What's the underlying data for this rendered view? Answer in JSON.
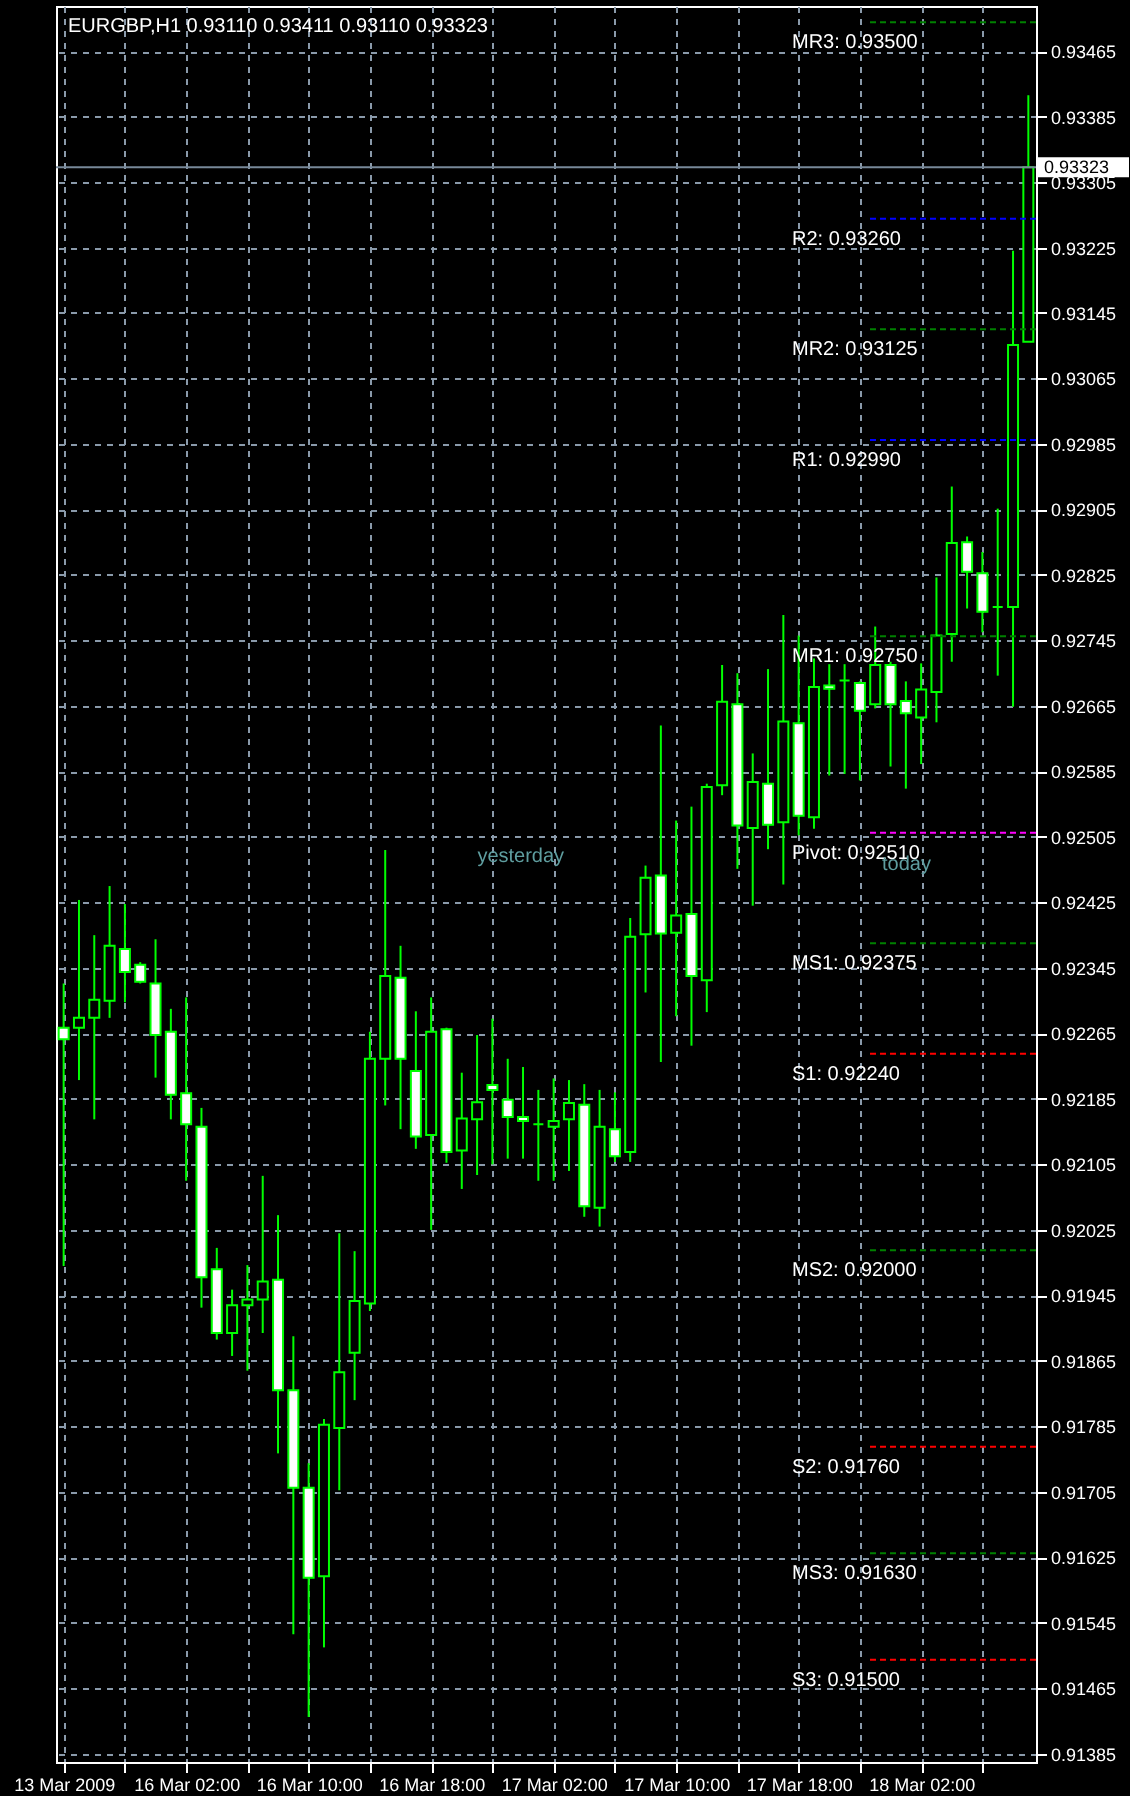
{
  "chart_data": {
    "type": "candlestick",
    "title": "EURGBP,H1  0.93110 0.93411 0.93110 0.93323",
    "categories": [
      "13 Mar 2009",
      null,
      null,
      null,
      null,
      null,
      null,
      null,
      "16 Mar 02:00",
      null,
      null,
      null,
      null,
      null,
      null,
      null,
      "16 Mar 10:00",
      null,
      null,
      null,
      null,
      null,
      null,
      null,
      "16 Mar 18:00",
      null,
      null,
      null,
      null,
      null,
      null,
      null,
      "17 Mar 02:00",
      null,
      null,
      null,
      null,
      null,
      null,
      null,
      "17 Mar 10:00",
      null,
      null,
      null,
      null,
      null,
      null,
      null,
      "17 Mar 18:00",
      null,
      null,
      null,
      null,
      null,
      null,
      null,
      "18 Mar 02:00",
      null,
      null,
      null,
      null,
      null,
      null,
      null
    ],
    "ohlc": [
      [
        0.92272,
        0.92326,
        0.91981,
        0.92258
      ],
      [
        0.92272,
        0.92428,
        0.92208,
        0.92284
      ],
      [
        0.92284,
        0.92385,
        0.9216,
        0.92306
      ],
      [
        0.92305,
        0.92445,
        0.92284,
        0.92372
      ],
      [
        0.92368,
        0.92423,
        0.92303,
        0.9234
      ],
      [
        0.92349,
        0.92352,
        0.92326,
        0.92328
      ],
      [
        0.92326,
        0.9238,
        0.92211,
        0.92263
      ],
      [
        0.92267,
        0.92295,
        0.9216,
        0.9219
      ],
      [
        0.92192,
        0.92309,
        0.92085,
        0.92154
      ],
      [
        0.92151,
        0.92174,
        0.9193,
        0.91967
      ],
      [
        0.91977,
        0.92003,
        0.91891,
        0.91899
      ],
      [
        0.91899,
        0.91952,
        0.91871,
        0.91933
      ],
      [
        0.91933,
        0.91982,
        0.91853,
        0.9194
      ],
      [
        0.9194,
        0.92091,
        0.91899,
        0.91962
      ],
      [
        0.91964,
        0.92043,
        0.91752,
        0.91829
      ],
      [
        0.91829,
        0.91895,
        0.91531,
        0.9171
      ],
      [
        0.9171,
        0.9174,
        0.9143,
        0.916
      ],
      [
        0.91602,
        0.91794,
        0.91515,
        0.91787
      ],
      [
        0.91783,
        0.92021,
        0.91707,
        0.91851
      ],
      [
        0.91875,
        0.91999,
        0.91817,
        0.91938
      ],
      [
        0.91935,
        0.92267,
        0.91926,
        0.92234
      ],
      [
        0.92234,
        0.92489,
        0.92177,
        0.92335
      ],
      [
        0.92333,
        0.92372,
        0.92148,
        0.92234
      ],
      [
        0.92219,
        0.92292,
        0.92124,
        0.92139
      ],
      [
        0.92141,
        0.92309,
        0.92025,
        0.92267
      ],
      [
        0.9227,
        0.92272,
        0.92107,
        0.9212
      ],
      [
        0.92122,
        0.92217,
        0.92075,
        0.92161
      ],
      [
        0.9216,
        0.92263,
        0.92092,
        0.92181
      ],
      [
        0.92202,
        0.92283,
        0.92105,
        0.92196
      ],
      [
        0.92184,
        0.92234,
        0.92112,
        0.92163
      ],
      [
        0.92163,
        0.92224,
        0.92112,
        0.92158
      ],
      [
        0.92154,
        0.92196,
        0.92085,
        0.92154
      ],
      [
        0.92151,
        0.9221,
        0.92085,
        0.92158
      ],
      [
        0.9216,
        0.92208,
        0.92097,
        0.9218
      ],
      [
        0.92178,
        0.92203,
        0.92041,
        0.92054
      ],
      [
        0.92052,
        0.92196,
        0.92029,
        0.92151
      ],
      [
        0.92148,
        0.92193,
        0.92108,
        0.92115
      ],
      [
        0.9212,
        0.92406,
        0.92108,
        0.92383
      ],
      [
        0.92386,
        0.9247,
        0.92315,
        0.92455
      ],
      [
        0.92458,
        0.92641,
        0.9223,
        0.92387
      ],
      [
        0.92388,
        0.92525,
        0.92286,
        0.92409
      ],
      [
        0.92411,
        0.92542,
        0.9225,
        0.92335
      ],
      [
        0.9233,
        0.9257,
        0.92291,
        0.92566
      ],
      [
        0.92568,
        0.92715,
        0.92556,
        0.9267
      ],
      [
        0.92667,
        0.92705,
        0.92466,
        0.92519
      ],
      [
        0.92516,
        0.92607,
        0.92421,
        0.92572
      ],
      [
        0.9257,
        0.9271,
        0.9249,
        0.9252
      ],
      [
        0.92523,
        0.92776,
        0.92447,
        0.92646
      ],
      [
        0.92644,
        0.92751,
        0.92507,
        0.92531
      ],
      [
        0.92529,
        0.92723,
        0.92515,
        0.92688
      ],
      [
        0.9269,
        0.92716,
        0.9258,
        0.92686
      ],
      [
        0.92696,
        0.92716,
        0.92582,
        0.92696
      ],
      [
        0.92693,
        0.92695,
        0.92574,
        0.92659
      ],
      [
        0.92667,
        0.92762,
        0.92662,
        0.92715
      ],
      [
        0.92715,
        0.92719,
        0.92591,
        0.92667
      ],
      [
        0.92671,
        0.92695,
        0.92564,
        0.92656
      ],
      [
        0.92651,
        0.92717,
        0.92594,
        0.92685
      ],
      [
        0.92682,
        0.92822,
        0.92645,
        0.92751
      ],
      [
        0.92753,
        0.92933,
        0.92719,
        0.92864
      ],
      [
        0.92865,
        0.92872,
        0.92784,
        0.92829
      ],
      [
        0.92827,
        0.92853,
        0.92755,
        0.9278
      ],
      [
        0.92786,
        0.92906,
        0.92702,
        0.92786
      ],
      [
        0.92786,
        0.93221,
        0.92664,
        0.93106
      ],
      [
        0.9311,
        0.93411,
        0.9311,
        0.93323
      ]
    ],
    "color": "#00ff00",
    "colors": [
      "#ffffff",
      "#000000",
      "#000000",
      "#000000",
      "#ffffff",
      "#ffffff",
      "#ffffff",
      "#ffffff",
      "#ffffff",
      "#ffffff",
      "#ffffff",
      "#000000",
      "#000000",
      "#000000",
      "#ffffff",
      "#ffffff",
      "#ffffff",
      "#000000",
      "#000000",
      "#000000",
      "#000000",
      "#000000",
      "#ffffff",
      "#ffffff",
      "#000000",
      "#ffffff",
      "#000000",
      "#000000",
      "#ffffff",
      "#ffffff",
      "#ffffff",
      "#00ff00",
      "#000000",
      "#000000",
      "#ffffff",
      "#000000",
      "#ffffff",
      "#000000",
      "#000000",
      "#ffffff",
      "#000000",
      "#ffffff",
      "#000000",
      "#000000",
      "#ffffff",
      "#000000",
      "#ffffff",
      "#000000",
      "#ffffff",
      "#000000",
      "#ffffff",
      "#00ff00",
      "#ffffff",
      "#000000",
      "#ffffff",
      "#ffffff",
      "#000000",
      "#000000",
      "#000000",
      "#ffffff",
      "#ffffff",
      "#00ff00",
      "#000000",
      "#000000"
    ],
    "ylim": [
      0.91375,
      0.9352
    ],
    "yticks": [
      0.91385,
      0.91465,
      0.91545,
      0.91625,
      0.91705,
      0.91785,
      0.91865,
      0.91945,
      0.92025,
      0.92105,
      0.92185,
      0.92265,
      0.92345,
      0.92425,
      0.92505,
      0.92585,
      0.92665,
      0.92745,
      0.92825,
      0.92905,
      0.92985,
      0.93065,
      0.93145,
      0.93225,
      0.93305,
      0.93385,
      0.93465
    ],
    "grid": true,
    "ref_lines": [
      {
        "axis": "y",
        "value": 0.935,
        "label": "MR3: 0.93500",
        "color": "#008000",
        "line_style": "dashed"
      },
      {
        "axis": "y",
        "value": 0.9326,
        "label": "R2: 0.93260",
        "color": "#0000ff",
        "line_style": "dashed"
      },
      {
        "axis": "y",
        "value": 0.93125,
        "label": "MR2: 0.93125",
        "color": "#008000",
        "line_style": "dashed"
      },
      {
        "axis": "y",
        "value": 0.9299,
        "label": "R1: 0.92990",
        "color": "#0000ff",
        "line_style": "dashed"
      },
      {
        "axis": "y",
        "value": 0.9275,
        "label": "MR1: 0.92750",
        "color": "#008000",
        "line_style": "dashed"
      },
      {
        "axis": "y",
        "value": 0.9251,
        "label": "Pivot: 0.92510",
        "color": "#ff00ff",
        "line_style": "dashed"
      },
      {
        "axis": "y",
        "value": 0.92375,
        "label": "MS1: 0.92375",
        "color": "#008000",
        "line_style": "dashed"
      },
      {
        "axis": "y",
        "value": 0.9224,
        "label": "S1: 0.92240",
        "color": "#ff0000",
        "line_style": "dashed"
      },
      {
        "axis": "y",
        "value": 0.92,
        "label": "MS2: 0.92000",
        "color": "#008000",
        "line_style": "dashed"
      },
      {
        "axis": "y",
        "value": 0.9176,
        "label": "S2: 0.91760",
        "color": "#ff0000",
        "line_style": "dashed"
      },
      {
        "axis": "y",
        "value": 0.9163,
        "label": "MS3: 0.91630",
        "color": "#008000",
        "line_style": "dashed"
      },
      {
        "axis": "y",
        "value": 0.915,
        "label": "S3: 0.91500",
        "color": "#ff0000",
        "line_style": "dashed"
      },
      {
        "axis": "y",
        "value": 0.93323,
        "label": "0.93323",
        "color": "#778899",
        "line_style": "solid"
      }
    ],
    "annotations": [
      "yesterday",
      "today"
    ]
  }
}
